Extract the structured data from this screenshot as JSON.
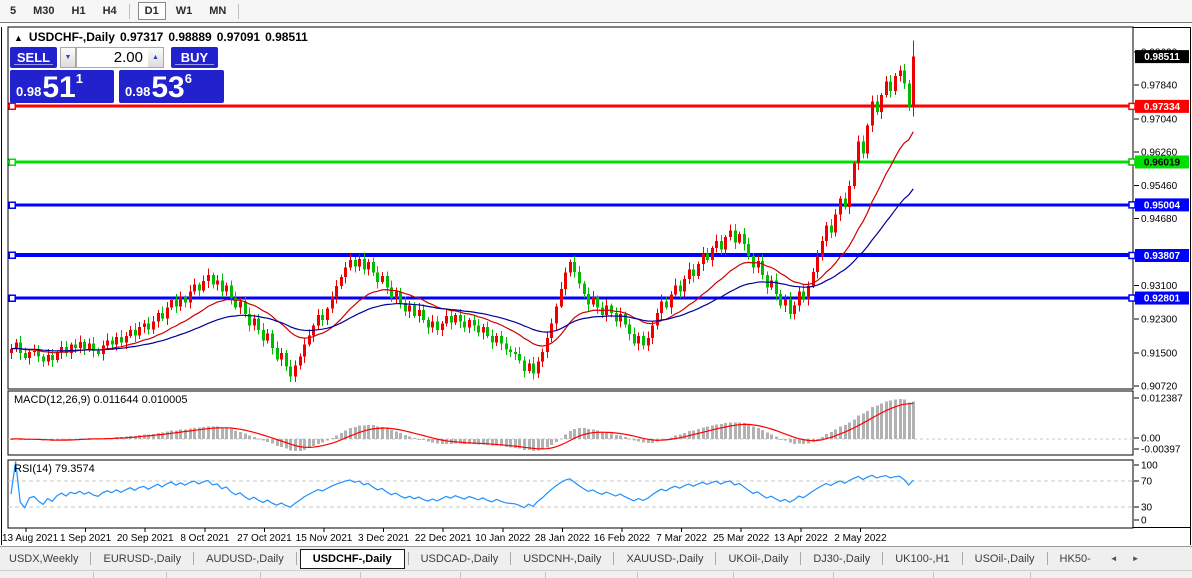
{
  "toolbar": {
    "timeframes": [
      "5",
      "M30",
      "H1",
      "H4",
      "D1",
      "W1",
      "MN"
    ],
    "active": "D1",
    "separators_after": [
      3,
      6
    ]
  },
  "chart": {
    "collapse_icon": "▲",
    "symbol": "USDCHF-,Daily",
    "open": "0.97317",
    "high": "0.98889",
    "low": "0.97091",
    "close": "0.98511"
  },
  "trade_panel": {
    "sell_label": "SELL",
    "buy_label": "BUY",
    "volume": "2.00",
    "volume_down_icon": "▼",
    "volume_up_icon": "▲",
    "sell_price": {
      "prefix": "0.98",
      "big": "51",
      "sup": "1"
    },
    "buy_price": {
      "prefix": "0.98",
      "big": "53",
      "sup": "6"
    },
    "panel_color": "#2121cd"
  },
  "price_axis": {
    "ticks": [
      "0.98620",
      "0.97840",
      "0.97040",
      "0.96260",
      "0.95460",
      "0.94680",
      "0.93100",
      "0.92300",
      "0.91500",
      "0.90720"
    ],
    "chips": [
      {
        "text": "0.98511",
        "price": 0.98511,
        "bg": "#000000",
        "fg": "#ffffff",
        "anchor": false
      },
      {
        "text": "0.97334",
        "price": 0.97334,
        "bg": "#ff0000",
        "fg": "#ffffff",
        "anchor": true
      },
      {
        "text": "0.96019",
        "price": 0.96019,
        "bg": "#00e000",
        "fg": "#000000",
        "anchor": true
      },
      {
        "text": "0.95004",
        "price": 0.95004,
        "bg": "#0000ff",
        "fg": "#ffffff",
        "anchor": true
      },
      {
        "text": "0.93807",
        "price": 0.93807,
        "bg": "#0000ff",
        "fg": "#ffffff",
        "anchor": true
      },
      {
        "text": "0.92801",
        "price": 0.92801,
        "bg": "#0000ff",
        "fg": "#ffffff",
        "anchor": true
      }
    ]
  },
  "chart_data": {
    "type": "candlestick",
    "symbol": "USDCHF",
    "timeframe": "Daily",
    "ylim": [
      0.9065,
      0.9921
    ],
    "y_ticks": [
      0.9862,
      0.9784,
      0.9704,
      0.9626,
      0.9546,
      0.9468,
      0.931,
      0.923,
      0.915,
      0.9072
    ],
    "x_labels": [
      "13 Aug 2021",
      "1 Sep 2021",
      "20 Sep 2021",
      "8 Oct 2021",
      "27 Oct 2021",
      "15 Nov 2021",
      "3 Dec 2021",
      "22 Dec 2021",
      "10 Jan 2022",
      "28 Jan 2022",
      "16 Feb 2022",
      "7 Mar 2022",
      "25 Mar 2022",
      "13 Apr 2022",
      "2 May 2022"
    ],
    "bars_per_label": 13,
    "first_label_bar_index": 5,
    "closes": [
      0.916,
      0.9175,
      0.915,
      0.9138,
      0.9152,
      0.9155,
      0.9142,
      0.913,
      0.9145,
      0.9133,
      0.9152,
      0.9164,
      0.915,
      0.917,
      0.9162,
      0.9176,
      0.916,
      0.9172,
      0.9155,
      0.9148,
      0.9168,
      0.918,
      0.917,
      0.9188,
      0.9175,
      0.919,
      0.9205,
      0.9192,
      0.9212,
      0.922,
      0.9206,
      0.9225,
      0.9245,
      0.9232,
      0.9258,
      0.9275,
      0.926,
      0.9282,
      0.927,
      0.9296,
      0.9312,
      0.9298,
      0.932,
      0.9335,
      0.9312,
      0.9322,
      0.9295,
      0.931,
      0.928,
      0.9258,
      0.9272,
      0.9242,
      0.9215,
      0.9232,
      0.9205,
      0.918,
      0.9196,
      0.9162,
      0.9135,
      0.915,
      0.9118,
      0.9095,
      0.912,
      0.9142,
      0.917,
      0.9192,
      0.9215,
      0.924,
      0.9228,
      0.9255,
      0.9282,
      0.9308,
      0.933,
      0.9352,
      0.937,
      0.9355,
      0.9372,
      0.9348,
      0.9365,
      0.934,
      0.9318,
      0.9332,
      0.9305,
      0.928,
      0.9295,
      0.9268,
      0.9248,
      0.9262,
      0.9238,
      0.9252,
      0.9228,
      0.921,
      0.9225,
      0.9205,
      0.922,
      0.9238,
      0.9222,
      0.924,
      0.9225,
      0.921,
      0.9228,
      0.9215,
      0.9198,
      0.9212,
      0.919,
      0.9175,
      0.919,
      0.9172,
      0.9158,
      0.9152,
      0.9148,
      0.9132,
      0.9108,
      0.9125,
      0.9102,
      0.913,
      0.9152,
      0.9185,
      0.922,
      0.926,
      0.9302,
      0.934,
      0.9365,
      0.9342,
      0.9315,
      0.929,
      0.9265,
      0.9282,
      0.9258,
      0.924,
      0.9262,
      0.9245,
      0.9225,
      0.9242,
      0.9218,
      0.9195,
      0.9172,
      0.919,
      0.9168,
      0.9185,
      0.9215,
      0.9245,
      0.9272,
      0.9258,
      0.9288,
      0.931,
      0.9295,
      0.9325,
      0.9348,
      0.9332,
      0.936,
      0.9385,
      0.937,
      0.9398,
      0.9415,
      0.9395,
      0.9425,
      0.944,
      0.9412,
      0.9432,
      0.9408,
      0.938,
      0.9352,
      0.9368,
      0.9335,
      0.9305,
      0.9322,
      0.929,
      0.9262,
      0.9278,
      0.9242,
      0.9262,
      0.9296,
      0.9278,
      0.9308,
      0.9342,
      0.9378,
      0.9415,
      0.9452,
      0.9435,
      0.9478,
      0.9515,
      0.9495,
      0.9545,
      0.9598,
      0.965,
      0.9622,
      0.9688,
      0.9745,
      0.972,
      0.976,
      0.9792,
      0.977,
      0.9805,
      0.9818,
      0.9788,
      0.9732,
      0.98511
    ],
    "last_bar": {
      "open": 0.97317,
      "high": 0.98889,
      "low": 0.97091,
      "close": 0.98511
    },
    "hlines": [
      {
        "price": 0.97334,
        "color": "#ff0000",
        "width": 3
      },
      {
        "price": 0.96019,
        "color": "#00e000",
        "width": 3
      },
      {
        "price": 0.95004,
        "color": "#0000ff",
        "width": 3
      },
      {
        "price": 0.93807,
        "color": "#0000ff",
        "width": 4
      },
      {
        "price": 0.92801,
        "color": "#0000ff",
        "width": 3
      }
    ],
    "ma": [
      {
        "period": 20,
        "color": "#cc0000"
      },
      {
        "period": 45,
        "color": "#000099"
      }
    ],
    "colors": {
      "bull": "#ee0000",
      "bear": "#00bb00"
    },
    "macd": {
      "label": "MACD(12,26,9)",
      "value_main": "0.011644",
      "value_signal": "0.010005",
      "params": [
        12,
        26,
        9
      ],
      "axis_labels": [
        "0.012387",
        "0.00",
        "-0.00397"
      ],
      "hist_color": "#b2b2b2",
      "signal_color": "#ff0000"
    },
    "rsi": {
      "label": "RSI(14)",
      "value": "79.3574",
      "period": 14,
      "axis_labels": [
        "100",
        "70",
        "30",
        "0"
      ],
      "levels": [
        70,
        30
      ],
      "color": "#1e90ff"
    }
  },
  "tabs": {
    "items": [
      "USDX,Weekly",
      "EURUSD-,Daily",
      "AUDUSD-,Daily",
      "USDCHF-,Daily",
      "USDCAD-,Daily",
      "USDCNH-,Daily",
      "XAUUSD-,Daily",
      "UKOil-,Daily",
      "DJ30-,Daily",
      "UK100-,H1",
      "USOil-,Daily",
      "HK50-"
    ],
    "active": "USDCHF-,Daily",
    "scroll_left_icon": "◄",
    "scroll_right_icon": "►"
  }
}
